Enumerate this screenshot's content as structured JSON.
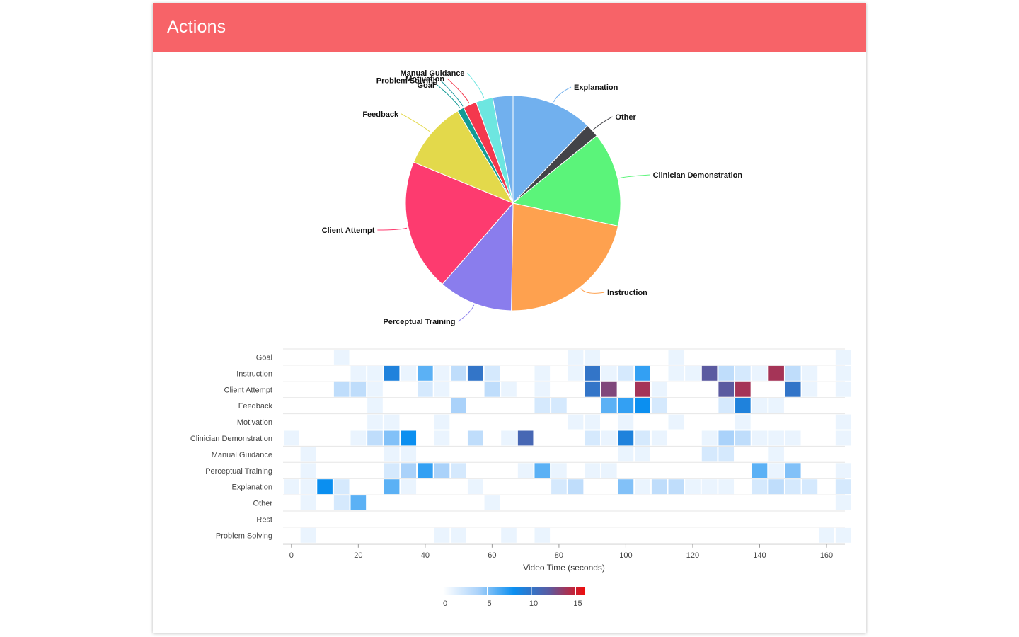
{
  "header": {
    "title": "Actions"
  },
  "chart_data": [
    {
      "type": "pie",
      "title": "",
      "slices": [
        {
          "label": "Explanation",
          "value": 12,
          "color": "#71b0ee"
        },
        {
          "label": "Other",
          "value": 2,
          "color": "#434348"
        },
        {
          "label": "Clinician Demonstration",
          "value": 14,
          "color": "#5bf47a"
        },
        {
          "label": "Instruction",
          "value": 21.5,
          "color": "#fea14f"
        },
        {
          "label": "Perceptual Training",
          "value": 11,
          "color": "#8a7ded"
        },
        {
          "label": "Client Attempt",
          "value": 19.5,
          "color": "#fd3b6f"
        },
        {
          "label": "Feedback",
          "value": 10,
          "color": "#e3d94b"
        },
        {
          "label": "Goal",
          "value": 1,
          "color": "#119a95"
        },
        {
          "label": "Problem Solving",
          "value": 0,
          "color": "#1f9aa0"
        },
        {
          "label": "Motivation",
          "value": 2,
          "color": "#f4384d"
        },
        {
          "label": "Manual Guidance",
          "value": 2.5,
          "color": "#6de6e0"
        },
        {
          "label": "",
          "value": 3,
          "color": "#71b0ee"
        }
      ]
    },
    {
      "type": "heatmap",
      "xlabel": "Video Time (seconds)",
      "ylabel": "",
      "x_ticks": [
        0,
        20,
        40,
        60,
        80,
        100,
        120,
        140,
        160
      ],
      "xlim": [
        -2.5,
        165.5
      ],
      "bin_width": 5,
      "categories": [
        "Goal",
        "Instruction",
        "Client Attempt",
        "Feedback",
        "Motivation",
        "Clinician Demonstration",
        "Manual Guidance",
        "Perceptual Training",
        "Explanation",
        "Other",
        "Rest",
        "Problem Solving"
      ],
      "bins": [
        0,
        5,
        10,
        15,
        20,
        25,
        30,
        35,
        40,
        45,
        50,
        55,
        60,
        65,
        70,
        75,
        80,
        85,
        90,
        95,
        100,
        105,
        110,
        115,
        120,
        125,
        130,
        135,
        140,
        145,
        150,
        155,
        160,
        165
      ],
      "rows": [
        [
          0,
          0,
          0,
          1,
          0,
          0,
          0,
          0,
          0,
          0,
          0,
          0,
          0,
          0,
          0,
          0,
          0,
          1,
          1,
          0,
          0,
          0,
          0,
          1,
          0,
          0,
          0,
          0,
          0,
          0,
          0,
          0,
          0,
          1
        ],
        [
          0,
          0,
          0,
          0,
          1,
          1,
          9,
          1,
          6,
          1,
          3,
          10,
          2,
          0,
          0,
          1,
          0,
          1,
          10,
          1,
          2,
          7,
          0,
          1,
          1,
          12,
          3,
          2,
          1,
          14,
          3,
          1,
          0,
          1
        ],
        [
          0,
          0,
          0,
          3,
          3,
          1,
          0,
          0,
          2,
          1,
          0,
          0,
          3,
          1,
          0,
          1,
          0,
          0,
          10,
          13,
          0,
          14,
          1,
          0,
          0,
          0,
          12,
          14,
          0,
          0,
          10,
          1,
          0,
          1
        ],
        [
          0,
          0,
          0,
          0,
          0,
          1,
          0,
          0,
          0,
          0,
          4,
          0,
          0,
          0,
          0,
          2,
          2,
          0,
          0,
          6,
          7,
          8,
          2,
          0,
          0,
          0,
          2,
          9,
          1,
          1,
          0,
          0,
          0,
          0
        ],
        [
          0,
          0,
          0,
          0,
          0,
          1,
          1,
          0,
          0,
          1,
          0,
          0,
          0,
          0,
          0,
          0,
          0,
          1,
          1,
          0,
          1,
          0,
          0,
          1,
          0,
          0,
          0,
          1,
          0,
          0,
          0,
          0,
          0,
          1
        ],
        [
          1,
          0,
          0,
          0,
          1,
          3,
          5,
          8,
          0,
          1,
          0,
          3,
          0,
          1,
          11,
          0,
          0,
          0,
          2,
          1,
          9,
          2,
          1,
          0,
          0,
          1,
          4,
          3,
          1,
          1,
          1,
          0,
          0,
          1
        ],
        [
          0,
          1,
          0,
          0,
          0,
          0,
          1,
          1,
          0,
          0,
          0,
          0,
          0,
          0,
          0,
          0,
          0,
          0,
          0,
          0,
          1,
          1,
          0,
          0,
          0,
          2,
          2,
          0,
          0,
          1,
          0,
          0,
          0,
          0
        ],
        [
          0,
          1,
          0,
          0,
          0,
          0,
          2,
          4,
          7,
          4,
          2,
          0,
          0,
          0,
          1,
          6,
          1,
          0,
          1,
          1,
          0,
          0,
          0,
          0,
          0,
          0,
          0,
          0,
          6,
          1,
          5,
          0,
          0,
          1
        ],
        [
          1,
          1,
          8,
          2,
          0,
          0,
          6,
          1,
          0,
          0,
          0,
          1,
          0,
          0,
          0,
          0,
          2,
          3,
          0,
          0,
          5,
          1,
          3,
          3,
          1,
          1,
          1,
          0,
          2,
          3,
          2,
          2,
          0,
          2
        ],
        [
          0,
          1,
          0,
          2,
          6,
          0,
          0,
          0,
          0,
          0,
          0,
          0,
          1,
          0,
          0,
          0,
          0,
          0,
          0,
          0,
          0,
          0,
          0,
          0,
          0,
          0,
          0,
          0,
          0,
          0,
          0,
          0,
          0,
          1
        ],
        [
          0,
          0,
          0,
          0,
          0,
          0,
          0,
          0,
          0,
          0,
          0,
          0,
          0,
          0,
          0,
          0,
          0,
          0,
          0,
          0,
          0,
          0,
          0,
          0,
          0,
          0,
          0,
          0,
          0,
          0,
          0,
          0,
          0,
          0
        ],
        [
          0,
          1,
          0,
          0,
          0,
          0,
          0,
          0,
          0,
          1,
          1,
          0,
          0,
          1,
          0,
          1,
          0,
          0,
          0,
          0,
          0,
          0,
          0,
          0,
          0,
          0,
          0,
          0,
          0,
          0,
          0,
          0,
          1,
          1
        ]
      ],
      "colorbar": {
        "ticks": [
          0,
          5,
          10,
          15
        ],
        "range": [
          0,
          16
        ],
        "stops": [
          "#ffffff",
          "#aad2fa",
          "#0b8ff0",
          "#5b5aa0",
          "#ee0d0d"
        ]
      }
    }
  ]
}
